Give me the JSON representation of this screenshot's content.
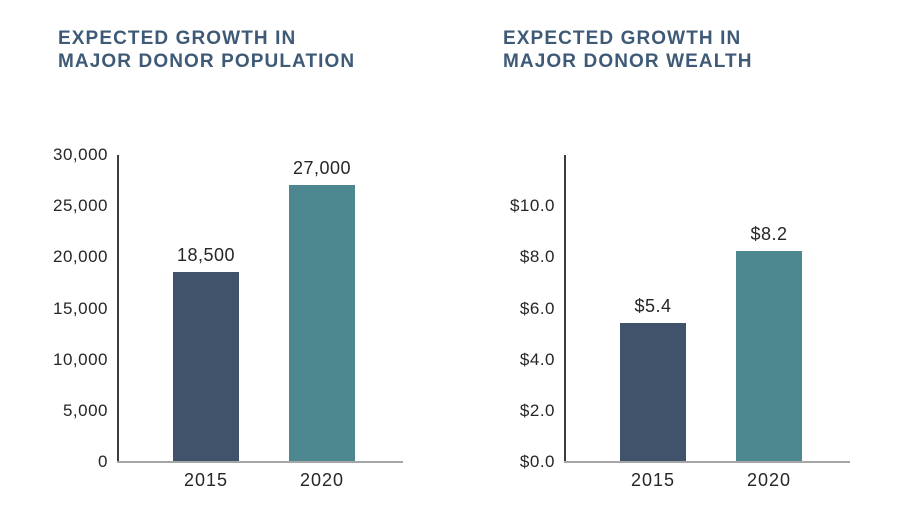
{
  "page": {
    "background": "#ffffff"
  },
  "colors": {
    "title_text": "#3E5A76",
    "tick_text": "#262626",
    "y_axis_line": "#3c3c3c",
    "x_baseline": "#a6a6a6",
    "bar_2015": "#41526B",
    "bar_2020": "#4D8790"
  },
  "chart_data": [
    {
      "type": "bar",
      "title": "EXPECTED GROWTH IN\nMAJOR DONOR POPULATION",
      "categories": [
        "2015",
        "2020"
      ],
      "values": [
        18500,
        27000
      ],
      "value_labels": [
        "18,500",
        "27,000"
      ],
      "series": [
        {
          "name": "Major donor population",
          "values": [
            18500,
            27000
          ]
        }
      ],
      "bar_colors": [
        "#41526B",
        "#4D8790"
      ],
      "xlabel": "",
      "ylabel": "",
      "ylim": [
        0,
        30000
      ],
      "yticks": [
        0,
        5000,
        10000,
        15000,
        20000,
        25000,
        30000
      ],
      "ytick_labels": [
        "0",
        "5,000",
        "10,000",
        "15,000",
        "20,000",
        "25,000",
        "30,000"
      ],
      "grid": false,
      "legend": "none"
    },
    {
      "type": "bar",
      "title": "EXPECTED GROWTH IN\nMAJOR DONOR WEALTH",
      "categories": [
        "2015",
        "2020"
      ],
      "values": [
        5.4,
        8.2
      ],
      "value_labels": [
        "$5.4",
        "$8.2"
      ],
      "series": [
        {
          "name": "Major donor wealth",
          "values": [
            5.4,
            8.2
          ]
        }
      ],
      "bar_colors": [
        "#41526B",
        "#4D8790"
      ],
      "xlabel": "",
      "ylabel": "",
      "ylim": [
        0,
        12
      ],
      "yticks": [
        0,
        2,
        4,
        6,
        8,
        10
      ],
      "ytick_labels": [
        "$0.0",
        "$2.0",
        "$4.0",
        "$6.0",
        "$8.0",
        "$10.0"
      ],
      "grid": false,
      "legend": "none"
    }
  ]
}
